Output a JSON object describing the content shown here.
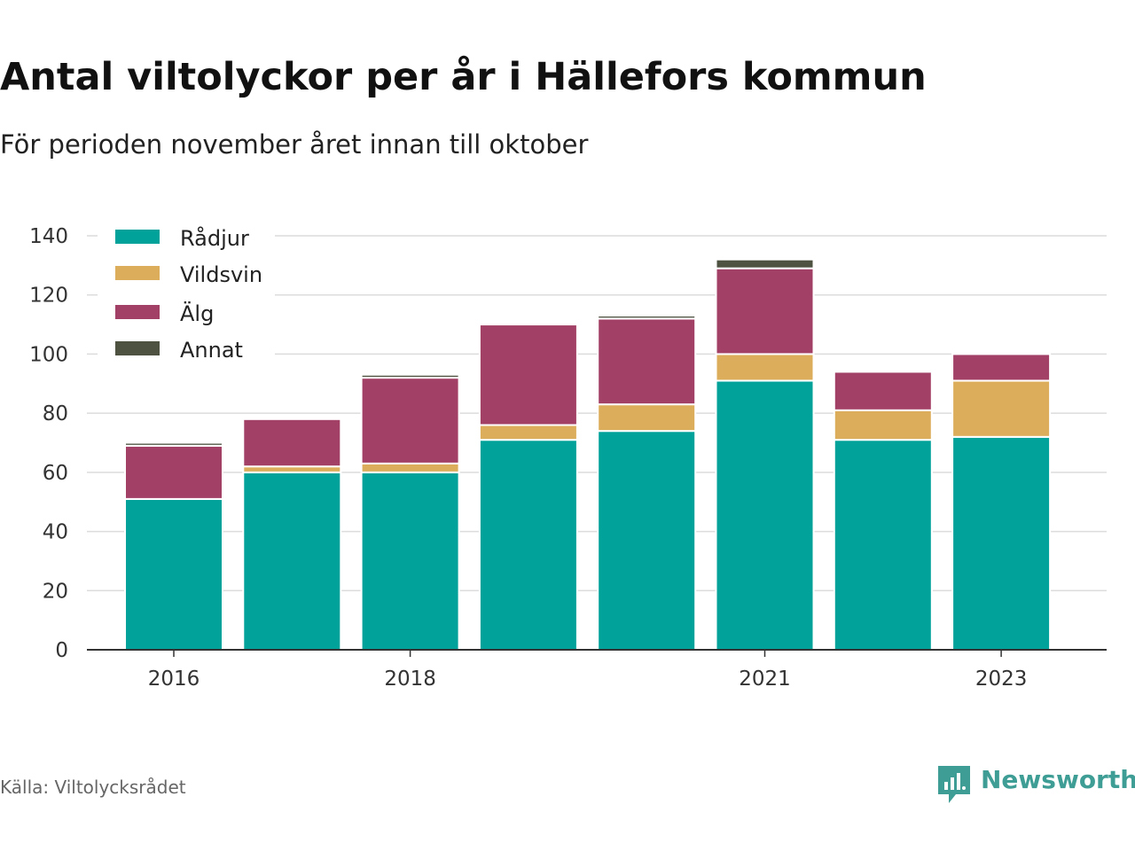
{
  "title": "Antal viltolyckor per år i Hällefors kommun",
  "subtitle": "För perioden november året innan till oktober",
  "source": "Källa: Viltolycksrådet",
  "brand": {
    "name": "Newsworthy",
    "icon": "newsworthy-logo-icon",
    "color": "#3e9e95"
  },
  "chart_data": {
    "type": "bar",
    "stacked": true,
    "x": [
      2016,
      2017,
      2018,
      2019,
      2020,
      2021,
      2022,
      2023
    ],
    "xticks": [
      2016,
      2018,
      2021,
      2023
    ],
    "ylim": [
      0,
      140
    ],
    "yticks": [
      0,
      20,
      40,
      60,
      80,
      100,
      120,
      140
    ],
    "grid": true,
    "legend_position": "top-left",
    "series": [
      {
        "name": "Rådjur",
        "color": "#00a29a",
        "values": [
          51,
          60,
          60,
          71,
          74,
          91,
          71,
          72
        ]
      },
      {
        "name": "Vildsvin",
        "color": "#dcae5c",
        "values": [
          0,
          2,
          3,
          5,
          9,
          9,
          10,
          19
        ]
      },
      {
        "name": "Älg",
        "color": "#a34066",
        "values": [
          18,
          16,
          29,
          34,
          29,
          29,
          13,
          9
        ]
      },
      {
        "name": "Annat",
        "color": "#4e5341",
        "values": [
          1,
          0,
          1,
          0,
          1,
          3,
          0,
          0
        ]
      }
    ]
  }
}
